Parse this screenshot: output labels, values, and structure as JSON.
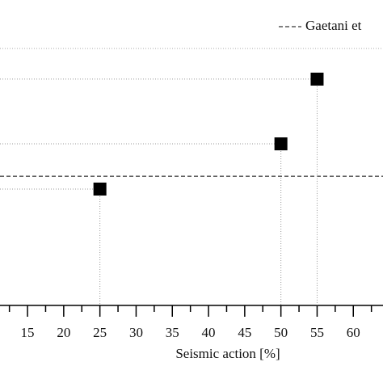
{
  "chart_data": {
    "type": "scatter",
    "x_label": "Seismic action [%]",
    "series": [
      {
        "name": "",
        "color": "#000000",
        "x": [
          25,
          50,
          55
        ],
        "values": [
          38.1,
          52.9,
          74.1
        ]
      }
    ],
    "reference": {
      "name": "Gaetani et",
      "value": 42.3
    },
    "xlim": [
      11.2,
      64.1
    ],
    "xticks": [
      15,
      20,
      25,
      30,
      35,
      40,
      45,
      50,
      55,
      60
    ],
    "ylim": [
      0,
      100
    ]
  }
}
